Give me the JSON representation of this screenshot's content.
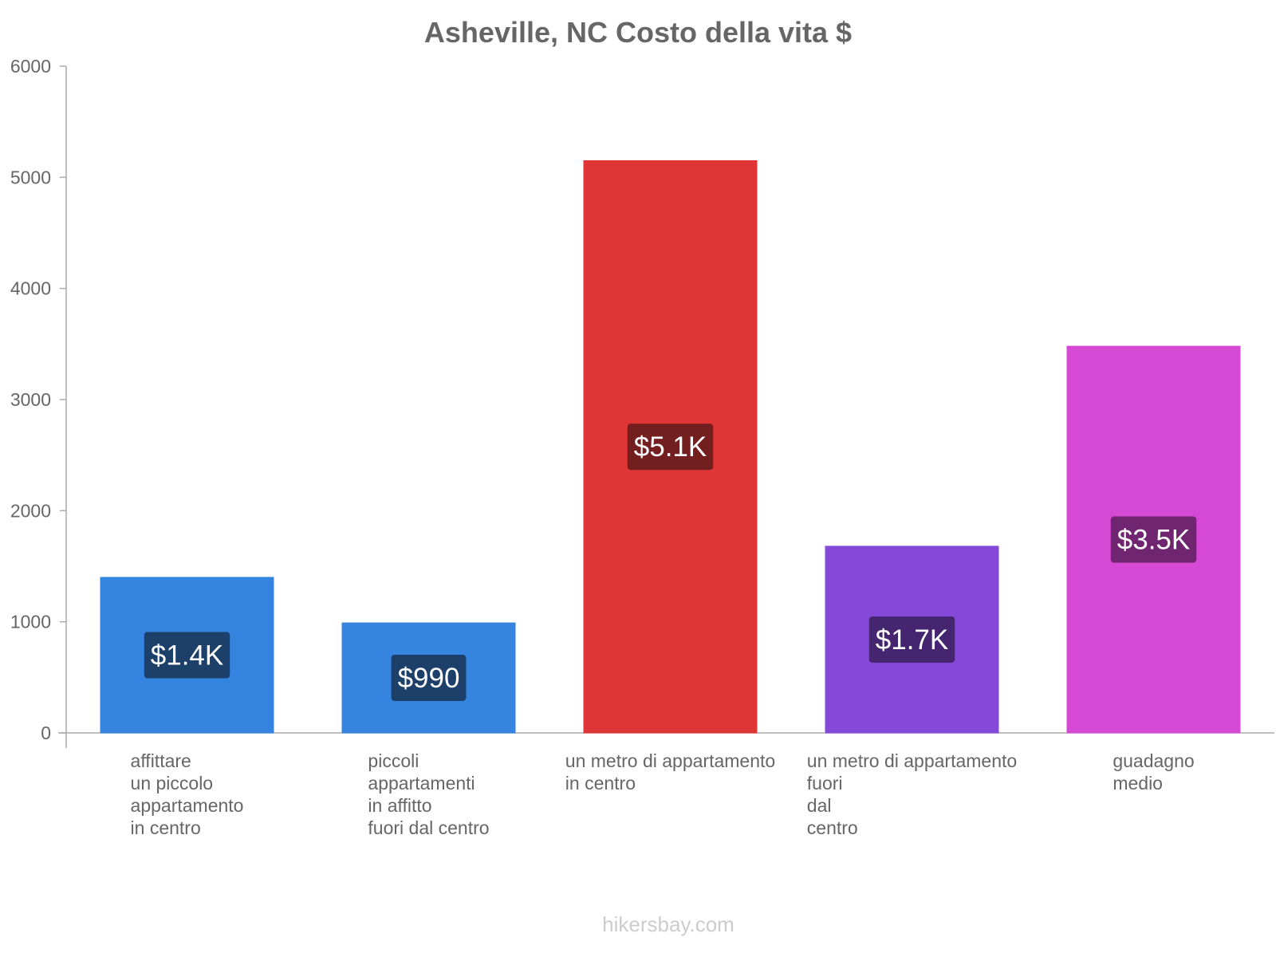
{
  "chart_data": {
    "type": "bar",
    "title": "Asheville, NC Costo della vita $",
    "xlabel": "",
    "ylabel": "",
    "ylim": [
      0,
      6000
    ],
    "yticks": [
      0,
      1000,
      2000,
      3000,
      4000,
      5000,
      6000
    ],
    "grid": false,
    "legend": "none",
    "categories": [
      [
        "affittare",
        "un piccolo",
        "appartamento",
        "in centro"
      ],
      [
        "piccoli",
        "appartamenti",
        "in affitto",
        "fuori dal centro"
      ],
      [
        "un metro di appartamento",
        "in centro"
      ],
      [
        "un metro di appartamento",
        "fuori",
        "dal",
        "centro"
      ],
      [
        "guadagno",
        "medio"
      ]
    ],
    "values": [
      1400,
      990,
      5150,
      1680,
      3480
    ],
    "value_labels": [
      "$1.4K",
      "$990",
      "$5.1K",
      "$1.7K",
      "$3.5K"
    ],
    "bar_colors": [
      "#3584e0",
      "#3584e0",
      "#e03535",
      "#8549d9",
      "#d649d4"
    ],
    "label_bg_colors": [
      "#1c406a",
      "#1c406a",
      "#731f1f",
      "#45256f",
      "#6f2570"
    ]
  },
  "watermark": "hikersbay.com"
}
